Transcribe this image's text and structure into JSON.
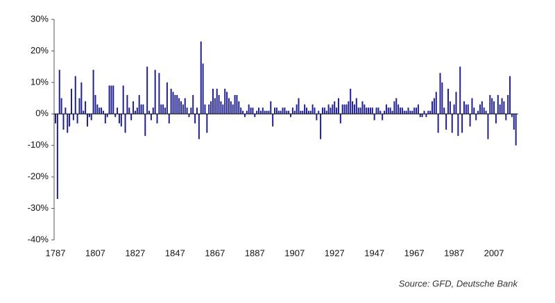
{
  "chart_data": {
    "type": "bar",
    "source": "Source: GFD, Deutsche Bank",
    "color": "#1f1f8f",
    "ylim": [
      -40,
      30
    ],
    "yticks": [
      {
        "value": -40,
        "label": "-40%"
      },
      {
        "value": -30,
        "label": "-30%"
      },
      {
        "value": -20,
        "label": "-20%"
      },
      {
        "value": -10,
        "label": "-10%"
      },
      {
        "value": 0,
        "label": "0%"
      },
      {
        "value": 10,
        "label": "10%"
      },
      {
        "value": 20,
        "label": "20%"
      },
      {
        "value": 30,
        "label": "30%"
      }
    ],
    "categories": [
      "1787",
      null,
      null,
      null,
      null,
      null,
      null,
      null,
      null,
      null,
      null,
      null,
      null,
      null,
      null,
      null,
      null,
      null,
      null,
      null,
      "1807",
      null,
      null,
      null,
      null,
      null,
      null,
      null,
      null,
      null,
      null,
      null,
      null,
      null,
      null,
      null,
      null,
      null,
      null,
      null,
      "1827",
      null,
      null,
      null,
      null,
      null,
      null,
      null,
      null,
      null,
      null,
      null,
      null,
      null,
      null,
      null,
      null,
      null,
      null,
      null,
      "1847",
      null,
      null,
      null,
      null,
      null,
      null,
      null,
      null,
      null,
      null,
      null,
      null,
      null,
      null,
      null,
      null,
      null,
      null,
      null,
      "1867",
      null,
      null,
      null,
      null,
      null,
      null,
      null,
      null,
      null,
      null,
      null,
      null,
      null,
      null,
      null,
      null,
      null,
      null,
      null,
      "1887",
      null,
      null,
      null,
      null,
      null,
      null,
      null,
      null,
      null,
      null,
      null,
      null,
      null,
      null,
      null,
      null,
      null,
      null,
      null,
      "1907",
      null,
      null,
      null,
      null,
      null,
      null,
      null,
      null,
      null,
      null,
      null,
      null,
      null,
      null,
      null,
      null,
      null,
      null,
      null,
      "1927",
      null,
      null,
      null,
      null,
      null,
      null,
      null,
      null,
      null,
      null,
      null,
      null,
      null,
      null,
      null,
      null,
      null,
      null,
      null,
      "1947",
      null,
      null,
      null,
      null,
      null,
      null,
      null,
      null,
      null,
      null,
      null,
      null,
      null,
      null,
      null,
      null,
      null,
      null,
      null,
      "1967",
      null,
      null,
      null,
      null,
      null,
      null,
      null,
      null,
      null,
      null,
      null,
      null,
      null,
      null,
      null,
      null,
      null,
      null,
      null,
      "1987",
      null,
      null,
      null,
      null,
      null,
      null,
      null,
      null,
      null,
      null,
      null,
      null,
      null,
      null,
      null,
      null,
      null,
      null,
      null,
      "2007",
      null,
      null,
      null,
      null,
      null,
      null,
      null,
      null,
      null,
      null,
      null
    ],
    "values": [
      -3,
      -27,
      14,
      5,
      -5,
      2,
      -6,
      -4,
      8,
      -2,
      12,
      -3,
      5,
      10,
      1,
      4,
      -4,
      -1,
      -2,
      14,
      6,
      3,
      2,
      2,
      1,
      -3,
      -1,
      9,
      9,
      9,
      -1,
      2,
      -3,
      -4,
      9,
      -6,
      6,
      2,
      -2,
      4,
      1,
      2,
      6,
      3,
      3,
      -7,
      15,
      1,
      -2,
      2,
      14,
      -3,
      13,
      3,
      3,
      2,
      10,
      -3,
      8,
      7,
      6,
      6,
      5,
      4,
      3,
      5,
      2,
      -1,
      2,
      6,
      -3,
      2,
      -8,
      23,
      16,
      3,
      -6,
      3,
      4,
      8,
      5,
      8,
      6,
      4,
      3,
      8,
      7,
      5,
      4,
      3,
      6,
      6,
      4,
      2,
      1,
      -1,
      1,
      3,
      2,
      2,
      -1,
      1,
      2,
      1,
      2,
      1,
      1,
      1,
      4,
      -4,
      2,
      2,
      1,
      1,
      2,
      2,
      1,
      1,
      -1,
      2,
      1,
      3,
      5,
      1,
      1,
      3,
      2,
      1,
      1,
      3,
      2,
      -2,
      1,
      -8,
      2,
      2,
      1,
      3,
      2,
      3,
      4,
      2,
      5,
      -3,
      3,
      3,
      3,
      4,
      8,
      4,
      3,
      5,
      2,
      2,
      4,
      3,
      2,
      2,
      2,
      2,
      -2,
      2,
      2,
      1,
      -2,
      1,
      3,
      2,
      2,
      1,
      4,
      5,
      3,
      2,
      2,
      1,
      1,
      2,
      1,
      1,
      2,
      2,
      3,
      -1,
      -1,
      1,
      -1,
      1,
      1,
      4,
      5,
      7,
      -6,
      13,
      10,
      2,
      -5,
      8,
      4,
      -6,
      3,
      7,
      -7,
      15,
      -6,
      4,
      3,
      3,
      -4,
      5,
      2,
      -2,
      1,
      3,
      4,
      2,
      1,
      -8,
      6,
      5,
      4,
      -3,
      6,
      3,
      5,
      4,
      -2,
      6,
      12,
      -1,
      -5,
      -10
    ]
  }
}
